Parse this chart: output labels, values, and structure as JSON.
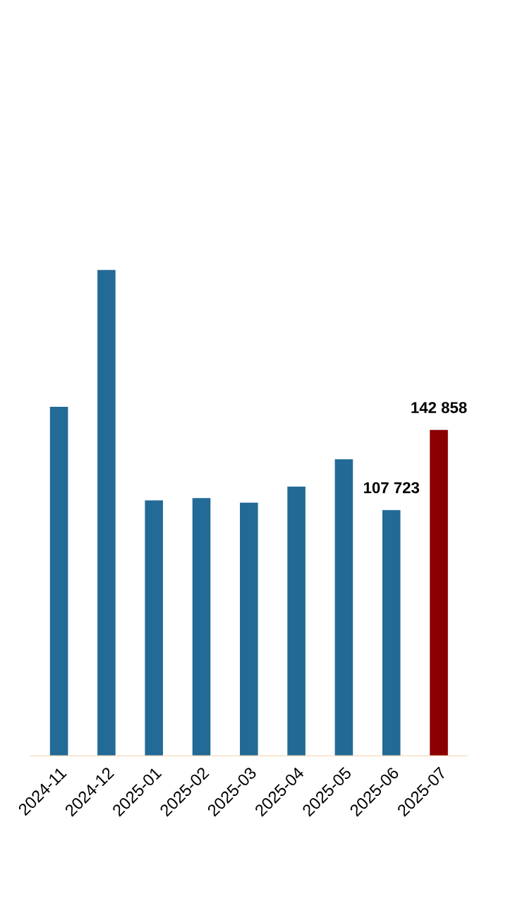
{
  "chart_data": {
    "type": "bar",
    "categories": [
      "2024-11",
      "2024-12",
      "2025-01",
      "2025-02",
      "2025-03",
      "2025-04",
      "2025-05",
      "2025-06",
      "2025-07"
    ],
    "values": [
      153000,
      213000,
      112000,
      113000,
      111000,
      118000,
      130000,
      107723,
      142858
    ],
    "colors": [
      "#236a96",
      "#236a96",
      "#236a96",
      "#236a96",
      "#236a96",
      "#236a96",
      "#236a96",
      "#236a96",
      "#8b0000"
    ],
    "value_labels": [
      null,
      null,
      null,
      null,
      null,
      null,
      null,
      "107 723",
      "142 858"
    ],
    "tick_labels": "x",
    "grid": false,
    "legend": false
  }
}
